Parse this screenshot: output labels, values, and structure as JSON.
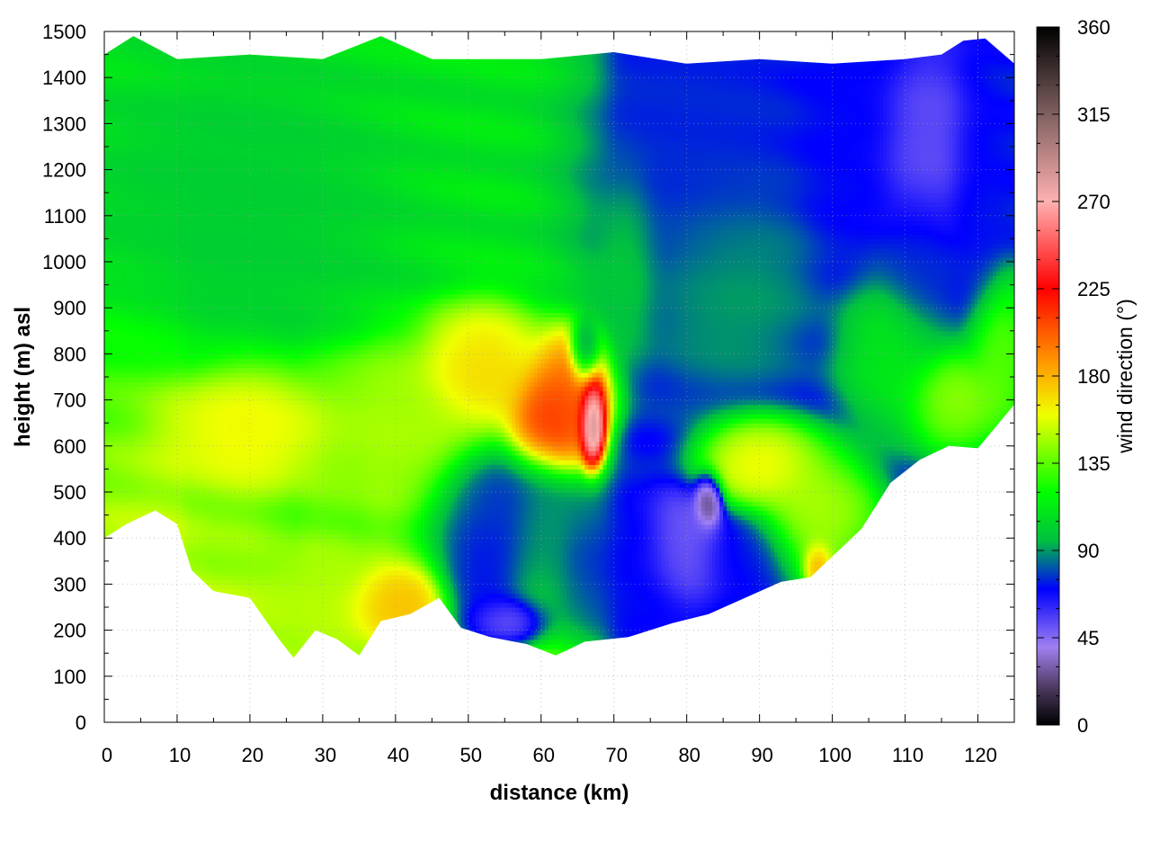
{
  "chart_data": {
    "type": "heatmap",
    "title": "",
    "xlabel": "distance (km)",
    "ylabel": "height (m) asl",
    "colorbar_label": "wind direction (°)",
    "xlim": [
      0,
      125
    ],
    "ylim": [
      0,
      1500
    ],
    "clim": [
      0,
      360
    ],
    "x_ticks": [
      "0",
      "10",
      "20",
      "30",
      "40",
      "50",
      "60",
      "70",
      "80",
      "90",
      "100",
      "110",
      "120"
    ],
    "y_ticks": [
      "0",
      "100",
      "200",
      "300",
      "400",
      "500",
      "600",
      "700",
      "800",
      "900",
      "1000",
      "1100",
      "1200",
      "1300",
      "1400",
      "1500"
    ],
    "colorbar_ticks": [
      "0",
      "45",
      "90",
      "135",
      "180",
      "225",
      "270",
      "315",
      "360"
    ],
    "grid": true,
    "colormap": [
      {
        "value": 0,
        "color": "#000000"
      },
      {
        "value": 20,
        "color": "#503c64"
      },
      {
        "value": 40,
        "color": "#a080f0"
      },
      {
        "value": 70,
        "color": "#0000ff"
      },
      {
        "value": 95,
        "color": "#00c040"
      },
      {
        "value": 120,
        "color": "#00ff00"
      },
      {
        "value": 160,
        "color": "#f0ff00"
      },
      {
        "value": 185,
        "color": "#ffa000"
      },
      {
        "value": 225,
        "color": "#ff0000"
      },
      {
        "value": 270,
        "color": "#ffb0b0"
      },
      {
        "value": 315,
        "color": "#806060"
      },
      {
        "value": 360,
        "color": "#000000"
      }
    ],
    "terrain_height": [
      {
        "x": 0,
        "y": 400
      },
      {
        "x": 3,
        "y": 430
      },
      {
        "x": 7,
        "y": 460
      },
      {
        "x": 10,
        "y": 430
      },
      {
        "x": 12,
        "y": 330
      },
      {
        "x": 15,
        "y": 285
      },
      {
        "x": 20,
        "y": 270
      },
      {
        "x": 24,
        "y": 180
      },
      {
        "x": 26,
        "y": 140
      },
      {
        "x": 29,
        "y": 200
      },
      {
        "x": 32,
        "y": 180
      },
      {
        "x": 35,
        "y": 145
      },
      {
        "x": 38,
        "y": 220
      },
      {
        "x": 42,
        "y": 235
      },
      {
        "x": 46,
        "y": 270
      },
      {
        "x": 49,
        "y": 205
      },
      {
        "x": 53,
        "y": 185
      },
      {
        "x": 58,
        "y": 170
      },
      {
        "x": 62,
        "y": 145
      },
      {
        "x": 66,
        "y": 175
      },
      {
        "x": 72,
        "y": 185
      },
      {
        "x": 78,
        "y": 215
      },
      {
        "x": 83,
        "y": 235
      },
      {
        "x": 88,
        "y": 270
      },
      {
        "x": 93,
        "y": 305
      },
      {
        "x": 97,
        "y": 315
      },
      {
        "x": 101,
        "y": 375
      },
      {
        "x": 104,
        "y": 420
      },
      {
        "x": 108,
        "y": 520
      },
      {
        "x": 112,
        "y": 570
      },
      {
        "x": 116,
        "y": 600
      },
      {
        "x": 120,
        "y": 595
      },
      {
        "x": 125,
        "y": 690
      }
    ],
    "data_top": [
      {
        "x": 0,
        "y": 1450
      },
      {
        "x": 4,
        "y": 1490
      },
      {
        "x": 10,
        "y": 1440
      },
      {
        "x": 20,
        "y": 1450
      },
      {
        "x": 30,
        "y": 1440
      },
      {
        "x": 38,
        "y": 1490
      },
      {
        "x": 45,
        "y": 1440
      },
      {
        "x": 60,
        "y": 1440
      },
      {
        "x": 70,
        "y": 1455
      },
      {
        "x": 80,
        "y": 1430
      },
      {
        "x": 90,
        "y": 1440
      },
      {
        "x": 100,
        "y": 1430
      },
      {
        "x": 110,
        "y": 1440
      },
      {
        "x": 115,
        "y": 1450
      },
      {
        "x": 118,
        "y": 1480
      },
      {
        "x": 121,
        "y": 1485
      },
      {
        "x": 125,
        "y": 1430
      }
    ],
    "features": [
      {
        "x": 18,
        "y": 1120,
        "value": 100,
        "sx": 14,
        "sy": 200
      },
      {
        "x": 20,
        "y": 640,
        "value": 165,
        "sx": 8,
        "sy": 90
      },
      {
        "x": 40,
        "y": 650,
        "value": 150,
        "sx": 8,
        "sy": 120
      },
      {
        "x": 40,
        "y": 260,
        "value": 180,
        "sx": 5,
        "sy": 50
      },
      {
        "x": 30,
        "y": 270,
        "value": 150,
        "sx": 6,
        "sy": 70
      },
      {
        "x": 52,
        "y": 760,
        "value": 175,
        "sx": 6,
        "sy": 100
      },
      {
        "x": 61,
        "y": 650,
        "value": 225,
        "sx": 4,
        "sy": 80
      },
      {
        "x": 64,
        "y": 720,
        "value": 205,
        "sx": 4,
        "sy": 90
      },
      {
        "x": 67,
        "y": 660,
        "value": 330,
        "sx": 1.3,
        "sy": 70
      },
      {
        "x": 66,
        "y": 800,
        "value": 65,
        "sx": 1.5,
        "sy": 50
      },
      {
        "x": 55,
        "y": 450,
        "value": 70,
        "sx": 7,
        "sy": 120
      },
      {
        "x": 52,
        "y": 300,
        "value": 65,
        "sx": 4,
        "sy": 100
      },
      {
        "x": 55,
        "y": 220,
        "value": 40,
        "sx": 4,
        "sy": 40
      },
      {
        "x": 60,
        "y": 400,
        "value": 95,
        "sx": 3,
        "sy": 120
      },
      {
        "x": 70,
        "y": 330,
        "value": 70,
        "sx": 7,
        "sy": 130
      },
      {
        "x": 80,
        "y": 390,
        "value": 45,
        "sx": 4,
        "sy": 90
      },
      {
        "x": 83,
        "y": 480,
        "value": 10,
        "sx": 1.4,
        "sy": 45
      },
      {
        "x": 88,
        "y": 360,
        "value": 70,
        "sx": 5,
        "sy": 70
      },
      {
        "x": 90,
        "y": 560,
        "value": 170,
        "sx": 6,
        "sy": 70
      },
      {
        "x": 98,
        "y": 450,
        "value": 155,
        "sx": 6,
        "sy": 100
      },
      {
        "x": 98,
        "y": 340,
        "value": 195,
        "sx": 1.5,
        "sy": 40
      },
      {
        "x": 80,
        "y": 1200,
        "value": 75,
        "sx": 10,
        "sy": 250
      },
      {
        "x": 85,
        "y": 950,
        "value": 95,
        "sx": 8,
        "sy": 150
      },
      {
        "x": 72,
        "y": 1000,
        "value": 105,
        "sx": 3,
        "sy": 150
      },
      {
        "x": 103,
        "y": 1280,
        "value": 70,
        "sx": 5,
        "sy": 200
      },
      {
        "x": 113,
        "y": 1250,
        "value": 50,
        "sx": 5,
        "sy": 140
      },
      {
        "x": 112,
        "y": 1000,
        "value": 75,
        "sx": 4,
        "sy": 120
      },
      {
        "x": 120,
        "y": 1150,
        "value": 72,
        "sx": 3,
        "sy": 200
      },
      {
        "x": 108,
        "y": 800,
        "value": 115,
        "sx": 5,
        "sy": 120
      },
      {
        "x": 117,
        "y": 700,
        "value": 150,
        "sx": 5,
        "sy": 80
      },
      {
        "x": 123,
        "y": 800,
        "value": 140,
        "sx": 3,
        "sy": 120
      }
    ]
  }
}
